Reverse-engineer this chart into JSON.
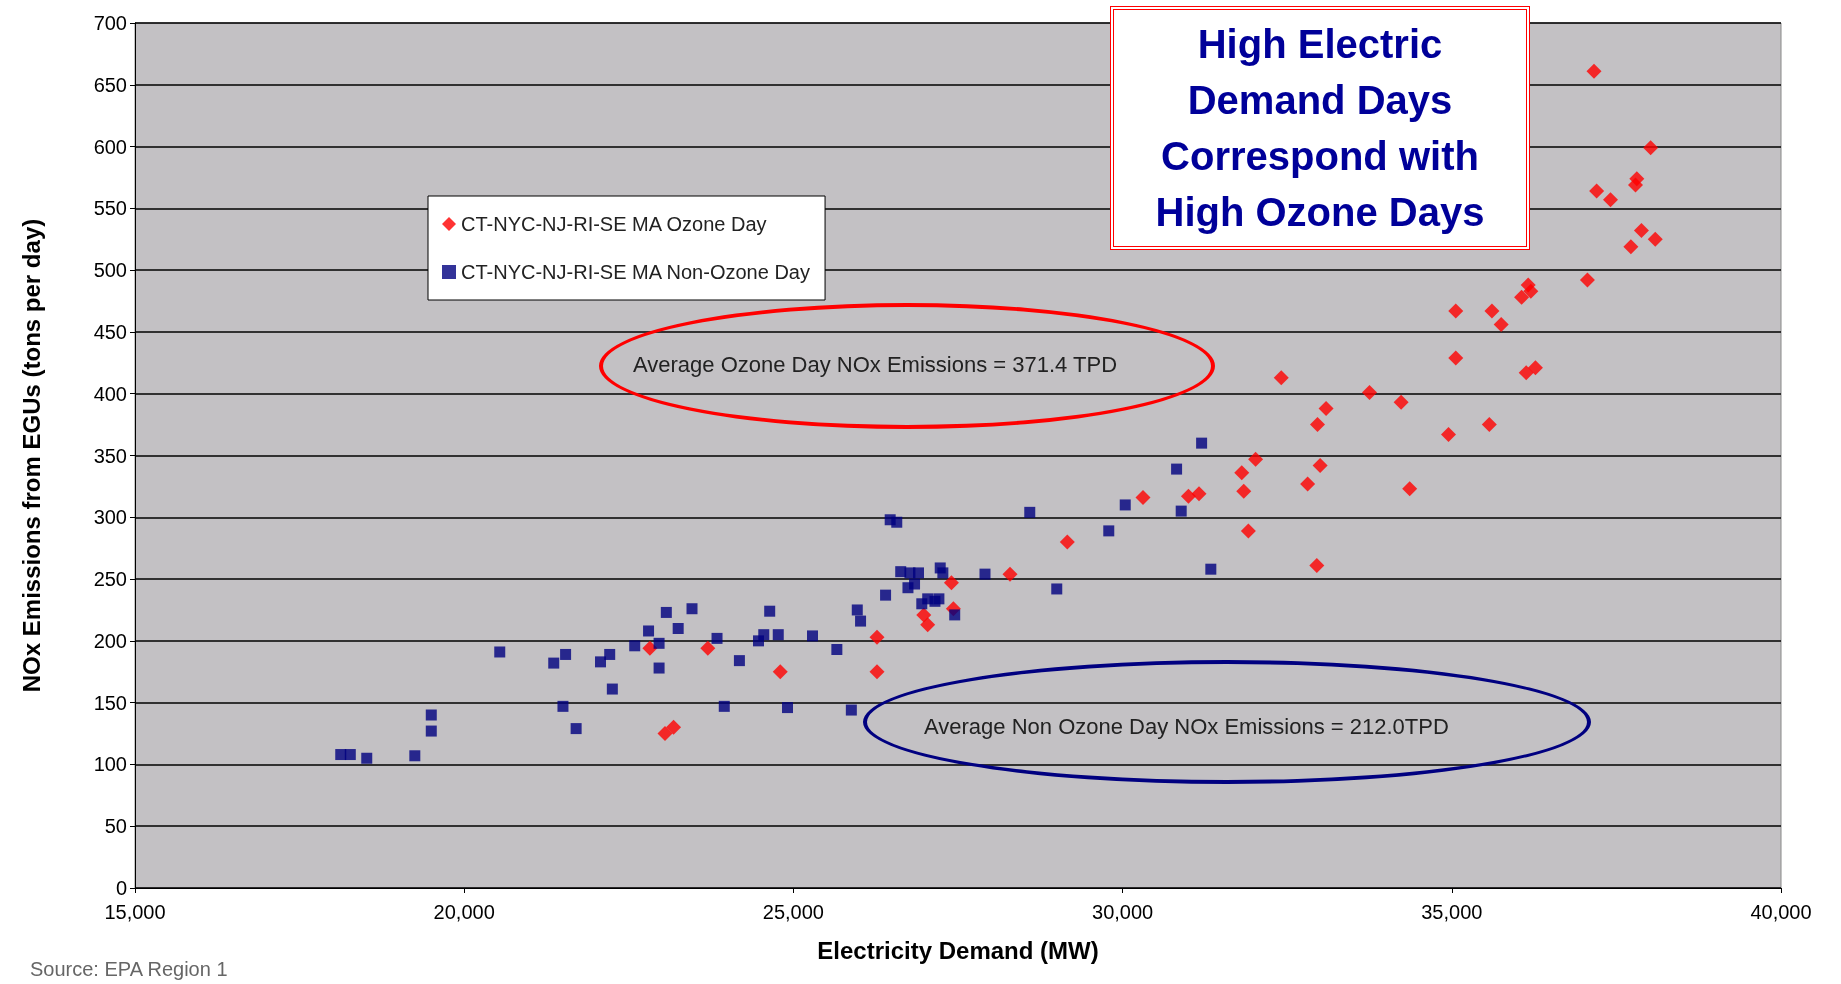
{
  "chart_data": {
    "type": "scatter",
    "title": "High Electric Demand Days Correspond with High Ozone Days",
    "xlabel": "Electricity Demand (MW)",
    "ylabel": "NOx Emissions from EGUs (tons per day)",
    "xlim": [
      15000,
      40000
    ],
    "xticks": [
      {
        "value": 15000,
        "label": "15,000"
      },
      {
        "value": 20000,
        "label": "20,000"
      },
      {
        "value": 25000,
        "label": "25,000"
      },
      {
        "value": 30000,
        "label": "30,000"
      },
      {
        "value": 35000,
        "label": "35,000"
      },
      {
        "value": 40000,
        "label": "40,000"
      }
    ],
    "ylim": [
      0,
      700
    ],
    "yticks": [
      0,
      50,
      100,
      150,
      200,
      250,
      300,
      350,
      400,
      450,
      500,
      550,
      600,
      650,
      700
    ],
    "grid": "y",
    "legend": "top left",
    "annotations": [
      "Average Ozone Day NOx Emissions = 371.4 TPD",
      "Average Non Ozone Day NOx Emissions = 212.0TPD",
      "Source: EPA Region 1"
    ],
    "series": [
      {
        "name": "CT-NYC-NJ-RI-SE MA Ozone Day",
        "color": "#ff0000",
        "marker": "diamond",
        "x": [
          22820,
          23050,
          23180,
          23700,
          24800,
          26270,
          26270,
          27040,
          26980,
          27400,
          27430,
          28290,
          29160,
          30310,
          31000,
          31160,
          31810,
          32020,
          31840,
          31910,
          32810,
          33000,
          32950,
          37160,
          38020,
          37200,
          37410,
          37810,
          37790,
          37880,
          37720,
          38090,
          37060,
          36160,
          36060,
          36200,
          35060,
          35610,
          35750,
          35060,
          36130,
          36270,
          33750,
          33090,
          32960,
          34230,
          34950,
          35570,
          34360,
          32410
        ],
        "values": [
          194,
          125,
          130,
          194,
          175,
          203,
          175,
          213,
          221,
          247,
          226,
          254,
          280,
          316,
          317,
          319,
          336,
          347,
          321,
          289,
          327,
          342,
          261,
          661,
          599,
          564,
          557,
          574,
          569,
          532,
          519,
          525,
          492,
          488,
          478,
          483,
          467,
          467,
          456,
          429,
          417,
          421,
          401,
          388,
          375,
          393,
          367,
          375,
          323,
          413
        ]
      },
      {
        "name": "CT-NYC-NJ-RI-SE MA Non-Ozone Day",
        "color": "#000080",
        "marker": "square",
        "x": [
          18125,
          18270,
          18520,
          19250,
          19500,
          19500,
          20540,
          21360,
          21540,
          21500,
          21700,
          22070,
          22210,
          22250,
          22590,
          22800,
          22960,
          22960,
          23070,
          23250,
          23460,
          23840,
          23950,
          24180,
          24470,
          24550,
          24640,
          24770,
          24910,
          25290,
          25660,
          25880,
          25970,
          26020,
          26400,
          26470,
          26570,
          26630,
          26770,
          26740,
          26840,
          26900,
          26950,
          27040,
          27150,
          27230,
          27270,
          27210,
          27450,
          27910,
          28590,
          29000,
          29790,
          30040,
          30820,
          30890,
          31200,
          31340
        ],
        "values": [
          108,
          108,
          105,
          107,
          127,
          140,
          191,
          182,
          189,
          147,
          129,
          183,
          189,
          161,
          196,
          208,
          198,
          178,
          223,
          210,
          226,
          202,
          147,
          184,
          200,
          205,
          224,
          205,
          146,
          204,
          193,
          144,
          225,
          216,
          237,
          298,
          296,
          256,
          255,
          243,
          246,
          255,
          230,
          234,
          232,
          259,
          255,
          234,
          221,
          254,
          304,
          242,
          289,
          310,
          339,
          305,
          360,
          258
        ]
      }
    ]
  }
}
